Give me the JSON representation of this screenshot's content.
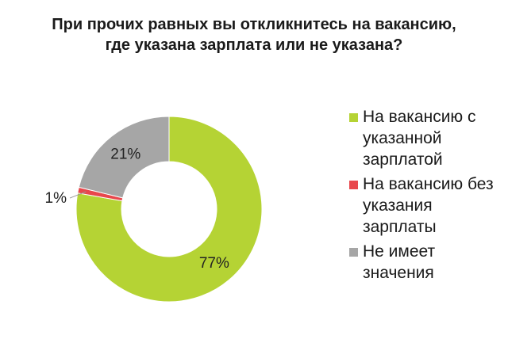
{
  "chart_data": {
    "type": "pie",
    "donut": true,
    "title": "При прочих равных вы откликнитесь на вакансию, где указана зарплата или не указана?",
    "slices": [
      {
        "name": "На вакансию с указанной зарплатой",
        "value": 77,
        "label": "77%",
        "color": "#b5d334"
      },
      {
        "name": "На вакансию без указания зарплаты",
        "value": 1,
        "label": "1%",
        "color": "#e8474c"
      },
      {
        "name": "Не имеет значения",
        "value": 21,
        "label": "21%",
        "color": "#a6a6a6"
      }
    ],
    "legend_position": "right"
  }
}
